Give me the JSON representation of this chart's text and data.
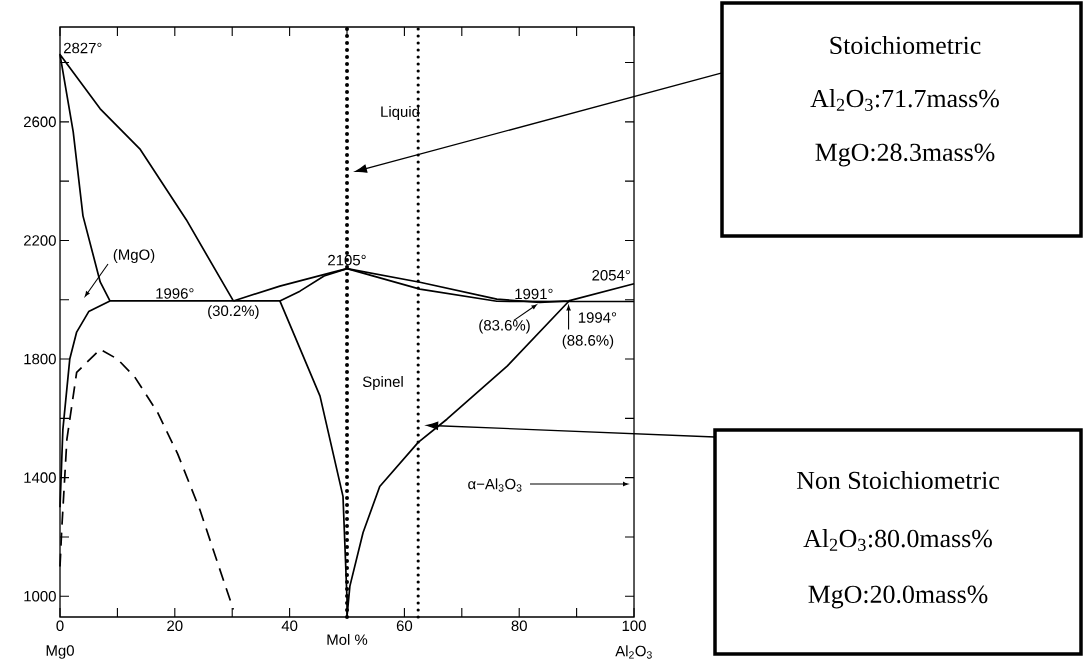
{
  "chart_data": {
    "type": "line",
    "xlabel": "Mol %",
    "line_style": "solid",
    "marker": "none",
    "xlim": [
      0,
      100
    ],
    "ylim": [
      930,
      2920
    ],
    "xticks": [
      0,
      {
        "value": 10,
        "label": null
      },
      20,
      {
        "value": 30,
        "label": null
      },
      40,
      {
        "value": 50,
        "label": null
      },
      60,
      {
        "value": 70,
        "label": null
      },
      80,
      {
        "value": 90,
        "label": null
      },
      100
    ],
    "yticks": [
      1000,
      {
        "value": 1200,
        "label": null
      },
      1400,
      {
        "value": 1600,
        "label": null
      },
      1800,
      {
        "value": 2000,
        "label": null
      },
      2200,
      {
        "value": 2400,
        "label": null
      },
      2600,
      {
        "value": 2800,
        "label": null
      }
    ],
    "series": [
      {
        "color": "#000000",
        "x": [
          8.7,
          7,
          4,
          2.3,
          0,
          7,
          13.9,
          22,
          30.2
        ],
        "values": [
          1996,
          2060,
          2283,
          2566,
          2827,
          2644,
          2509,
          2270,
          1996
        ]
      },
      {
        "color": "#000000",
        "x": [
          0,
          0.5,
          1.7,
          2.9,
          5,
          8.7,
          38.3,
          41.8,
          46,
          50,
          62.7,
          76.1,
          88.6,
          100
        ],
        "values": [
          1300,
          1563,
          1800,
          1891,
          1960,
          1996,
          1996,
          2029,
          2080,
          2105,
          2036,
          1995,
          1994,
          1994
        ]
      },
      {
        "color": "#000000",
        "x": [
          30.2,
          38.3,
          47.6,
          50,
          62.7,
          76.1,
          83.6,
          88.6,
          100
        ],
        "values": [
          1996,
          2046,
          2093,
          2105,
          2059,
          2002,
          1991,
          1996,
          2054
        ]
      },
      {
        "color": "#000000",
        "x": [
          38.3,
          40.4,
          45.3,
          49.3,
          50,
          50,
          50.5,
          52.8,
          55.7,
          62.4,
          67.4,
          77.9,
          88.6
        ],
        "values": [
          1996,
          1900,
          1675,
          1337,
          990,
          932,
          1034,
          1215,
          1370,
          1519,
          1597,
          1776,
          1994
        ]
      },
      {
        "color": "#000000",
        "line_style": "dashed",
        "x": [
          0,
          0.3,
          1.2,
          2.9,
          7,
          10,
          13,
          17,
          20.5,
          24.4,
          27.5,
          30.2
        ],
        "values": [
          1100,
          1225,
          1529,
          1755,
          1833,
          1800,
          1740,
          1620,
          1480,
          1290,
          1110,
          955
        ]
      }
    ],
    "ref_lines": [
      {
        "axis": "x",
        "value": 50,
        "color": "#000000",
        "line_style": "dotted"
      },
      {
        "axis": "x",
        "value": 62.4,
        "color": "#000000",
        "line_style": "dotted"
      }
    ],
    "annotations": [
      {
        "text": "2827°",
        "x": 0,
        "y": 2827
      },
      {
        "text": "1996°",
        "x": 20,
        "y": 1996
      },
      {
        "text": "(30.2%)",
        "x": 30.2,
        "y": 1996
      },
      {
        "text": "2105°",
        "x": 50,
        "y": 2105
      },
      {
        "text": "1991°",
        "x": 83.6,
        "y": 1991
      },
      {
        "text": "(83.6%)",
        "x": 83.6,
        "y": 1991
      },
      {
        "text": "2054°",
        "x": 100,
        "y": 2054
      },
      {
        "text": "1994°",
        "x": 88.6,
        "y": 1994
      },
      {
        "text": "(88.6%)",
        "x": 88.6,
        "y": 1994
      },
      "(MgO)",
      "Liquid",
      "Spinel",
      "α−Al$_{3}$O$_{3}$",
      "Mg0",
      "Al$_{2}$O$_{3}$",
      "Stoichiometric",
      "Al$_{2}$O$_{3}$:71.7mass%",
      "MgO:28.3mass%",
      "Non Stoichiometric",
      "Al$_{2}$O$_{3}$:80.0mass%",
      "MgO:20.0mass%"
    ]
  }
}
